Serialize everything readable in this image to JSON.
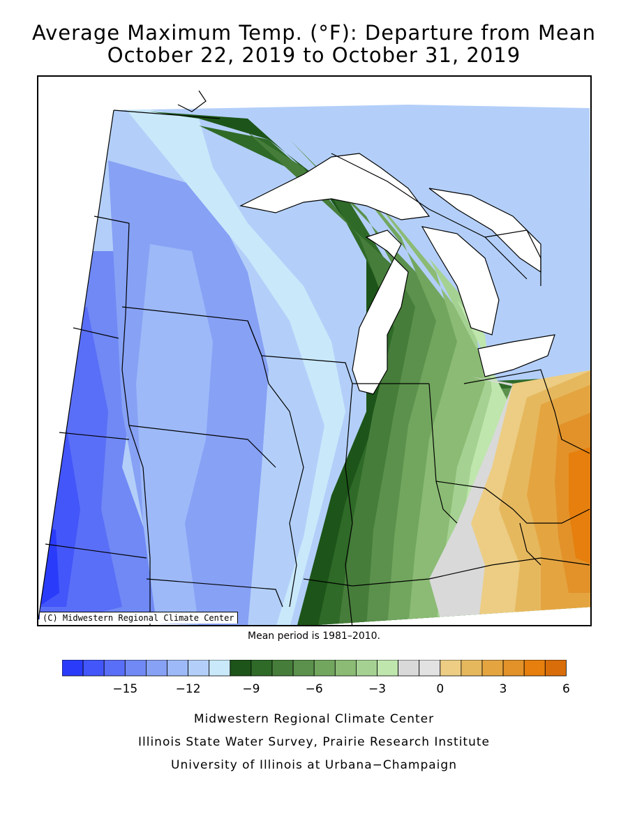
{
  "title": {
    "line1": "Average Maximum Temp. (°F): Departure from Mean",
    "line2": "October 22, 2019 to October 31, 2019"
  },
  "map": {
    "copyright": "(C) Midwestern Regional Climate Center"
  },
  "mean_period_note": "Mean period is 1981–2010.",
  "legend": {
    "colors": [
      "#2a3cfa",
      "#4356fa",
      "#5a6ff7",
      "#7089f5",
      "#87a1f5",
      "#9db9f8",
      "#b3cff9",
      "#c9e9fb",
      "#1d5419",
      "#2f6a28",
      "#467d3a",
      "#5b914c",
      "#72a65f",
      "#8bbb74",
      "#a5d292",
      "#bfe6ad",
      "#d9d9d9",
      "#e2e2e2",
      "#eccd83",
      "#e6b85e",
      "#e4a541",
      "#e29229",
      "#e67f0d",
      "#d96d0a"
    ],
    "tick_labels": [
      "−15",
      "−12",
      "−9",
      "−6",
      "−3",
      "0",
      "3",
      "6"
    ],
    "tick_values": [
      -15,
      -12,
      -9,
      -6,
      -3,
      0,
      3,
      6
    ],
    "min": -18,
    "step": 1
  },
  "credits": {
    "line1": "Midwestern Regional Climate Center",
    "line2": "Illinois State Water Survey, Prairie Research Institute",
    "line3": "University of Illinois at Urbana−Champaign"
  }
}
